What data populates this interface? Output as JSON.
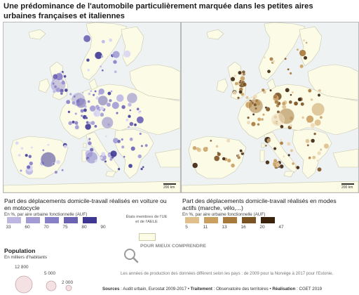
{
  "title": "Une prédominance de l'automobile particulièrement marquée dans les petites aires urbaines françaises et italiennes",
  "maps": {
    "scale_label": "200 km",
    "left": {
      "legend_title": "Part des déplacements domicile-travail réalisés en voiture ou en motocycle",
      "legend_sub": "En %, par aire urbaine fonctionnelle (AUF)",
      "breaks": [
        "33",
        "60",
        "70",
        "75",
        "80",
        "90"
      ],
      "colors": [
        "#d9d6ef",
        "#bdb7e2",
        "#a29bd4",
        "#8880c6",
        "#6a62b2",
        "#3f3893"
      ]
    },
    "right": {
      "legend_title": "Part des déplacements domicile-travail réalisés en modes actifs (marche, vélo,...)",
      "legend_sub": "En %, par aire urbaine fonctionnelle (AUF)",
      "breaks": [
        "5",
        "11",
        "13",
        "16",
        "20",
        "47"
      ],
      "colors": [
        "#ecd9b5",
        "#dfc08c",
        "#c9a060",
        "#a7793a",
        "#7b5222",
        "#3b220b"
      ]
    },
    "land_color": "#fbfbe6",
    "sea_color": "#eef2f3",
    "eu_note": "États membres de l'UE et de l'AELE"
  },
  "population": {
    "title": "Population",
    "subtitle": "En milliers d'habitants",
    "values": [
      "12 800",
      "5 000",
      "2 000"
    ]
  },
  "help": {
    "label": "POUR MIEUX COMPRENDRE",
    "text": "Les années de production des données diffèrent selon les pays : de 2009 pour la Norvège à 2017 pour l'Estonie."
  },
  "sources": {
    "label1": "Sources",
    "text1": " : Audit urbain, Eurostat 2009-2017 • ",
    "label2": "Traitement",
    "text2": " : Observatoire des territoires • ",
    "label3": "Réalisation",
    "text3": " : CGET 2019"
  }
}
